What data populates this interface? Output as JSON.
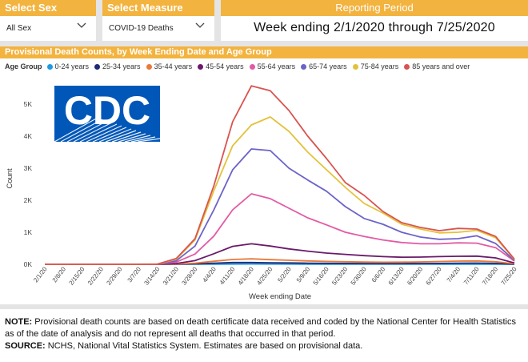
{
  "filters": {
    "sex": {
      "label": "Select Sex",
      "value": "All Sex"
    },
    "measure": {
      "label": "Select Measure",
      "value": "COVID-19 Deaths"
    },
    "period": {
      "label": "Reporting Period",
      "value": "Week ending 2/1/2020 through 7/25/2020"
    }
  },
  "logo": {
    "text": "CDC"
  },
  "note": {
    "note_label": "NOTE:",
    "note_text": "Provisional death counts are based on death certificate data received and coded by the National Center for Health Statistics as of the date of analysis and do not represent all deaths that occurred in that period.",
    "source_label": "SOURCE:",
    "source_text": "NCHS, National Vital Statistics System. Estimates are based on provisional data."
  },
  "chart_data": {
    "type": "line",
    "title": "Provisional Death Counts, by Week Ending Date and Age Group",
    "legend_title": "Age Group",
    "legend_position": "top-left",
    "xlabel": "Week ending Date",
    "ylabel": "Count",
    "ylim": [
      0,
      5800
    ],
    "yticks": [
      0,
      1000,
      2000,
      3000,
      4000,
      5000
    ],
    "ytick_labels": [
      "0K",
      "1K",
      "2K",
      "3K",
      "4K",
      "5K"
    ],
    "grid": false,
    "categories": [
      "2/1/20",
      "2/8/20",
      "2/15/20",
      "2/22/20",
      "2/29/20",
      "3/7/20",
      "3/14/20",
      "3/21/20",
      "3/28/20",
      "4/4/20",
      "4/11/20",
      "4/18/20",
      "4/25/20",
      "5/2/20",
      "5/9/20",
      "5/16/20",
      "5/23/20",
      "5/30/20",
      "6/6/20",
      "6/13/20",
      "6/20/20",
      "6/27/20",
      "7/4/20",
      "7/11/20",
      "7/18/20",
      "7/25/20"
    ],
    "series": [
      {
        "name": "0-24 years",
        "color": "#1f9be0",
        "values": [
          0,
          0,
          0,
          0,
          0,
          0,
          0,
          1,
          3,
          5,
          8,
          9,
          8,
          7,
          6,
          5,
          5,
          4,
          4,
          4,
          4,
          5,
          6,
          6,
          4,
          1
        ]
      },
      {
        "name": "25-34 years",
        "color": "#1c2a78",
        "values": [
          0,
          0,
          0,
          0,
          0,
          0,
          0,
          3,
          12,
          35,
          55,
          55,
          48,
          42,
          36,
          30,
          27,
          24,
          22,
          22,
          24,
          28,
          35,
          38,
          28,
          6
        ]
      },
      {
        "name": "35-44 years",
        "color": "#e87a3a",
        "values": [
          0,
          0,
          0,
          0,
          0,
          0,
          1,
          8,
          35,
          95,
          150,
          170,
          145,
          125,
          105,
          90,
          80,
          70,
          65,
          68,
          75,
          88,
          100,
          105,
          80,
          15
        ]
      },
      {
        "name": "45-54 years",
        "color": "#6b1a6b",
        "values": [
          0,
          0,
          0,
          0,
          0,
          0,
          2,
          25,
          115,
          330,
          560,
          640,
          570,
          480,
          410,
          350,
          310,
          270,
          240,
          220,
          225,
          240,
          250,
          255,
          200,
          40
        ]
      },
      {
        "name": "55-64 years",
        "color": "#e35aa5",
        "values": [
          0,
          0,
          0,
          0,
          0,
          0,
          3,
          70,
          320,
          880,
          1700,
          2200,
          2050,
          1750,
          1450,
          1230,
          1000,
          870,
          760,
          680,
          640,
          640,
          670,
          660,
          520,
          100
        ]
      },
      {
        "name": "65-74 years",
        "color": "#6b63c9",
        "values": [
          0,
          0,
          0,
          0,
          0,
          0,
          4,
          110,
          570,
          1700,
          2950,
          3600,
          3550,
          3000,
          2630,
          2280,
          1800,
          1430,
          1250,
          1000,
          850,
          780,
          800,
          890,
          650,
          120
        ]
      },
      {
        "name": "75-84 years",
        "color": "#e3c23b",
        "values": [
          0,
          0,
          0,
          0,
          0,
          0,
          5,
          160,
          760,
          2300,
          3700,
          4350,
          4600,
          4150,
          3500,
          2950,
          2400,
          1900,
          1600,
          1250,
          1100,
          980,
          1000,
          1060,
          830,
          150
        ]
      },
      {
        "name": "85 years and over",
        "color": "#d9534f",
        "values": [
          0,
          0,
          0,
          0,
          0,
          0,
          5,
          180,
          800,
          2450,
          4450,
          5570,
          5420,
          4800,
          4000,
          3300,
          2550,
          2150,
          1650,
          1300,
          1150,
          1050,
          1120,
          1100,
          870,
          160
        ]
      }
    ]
  }
}
